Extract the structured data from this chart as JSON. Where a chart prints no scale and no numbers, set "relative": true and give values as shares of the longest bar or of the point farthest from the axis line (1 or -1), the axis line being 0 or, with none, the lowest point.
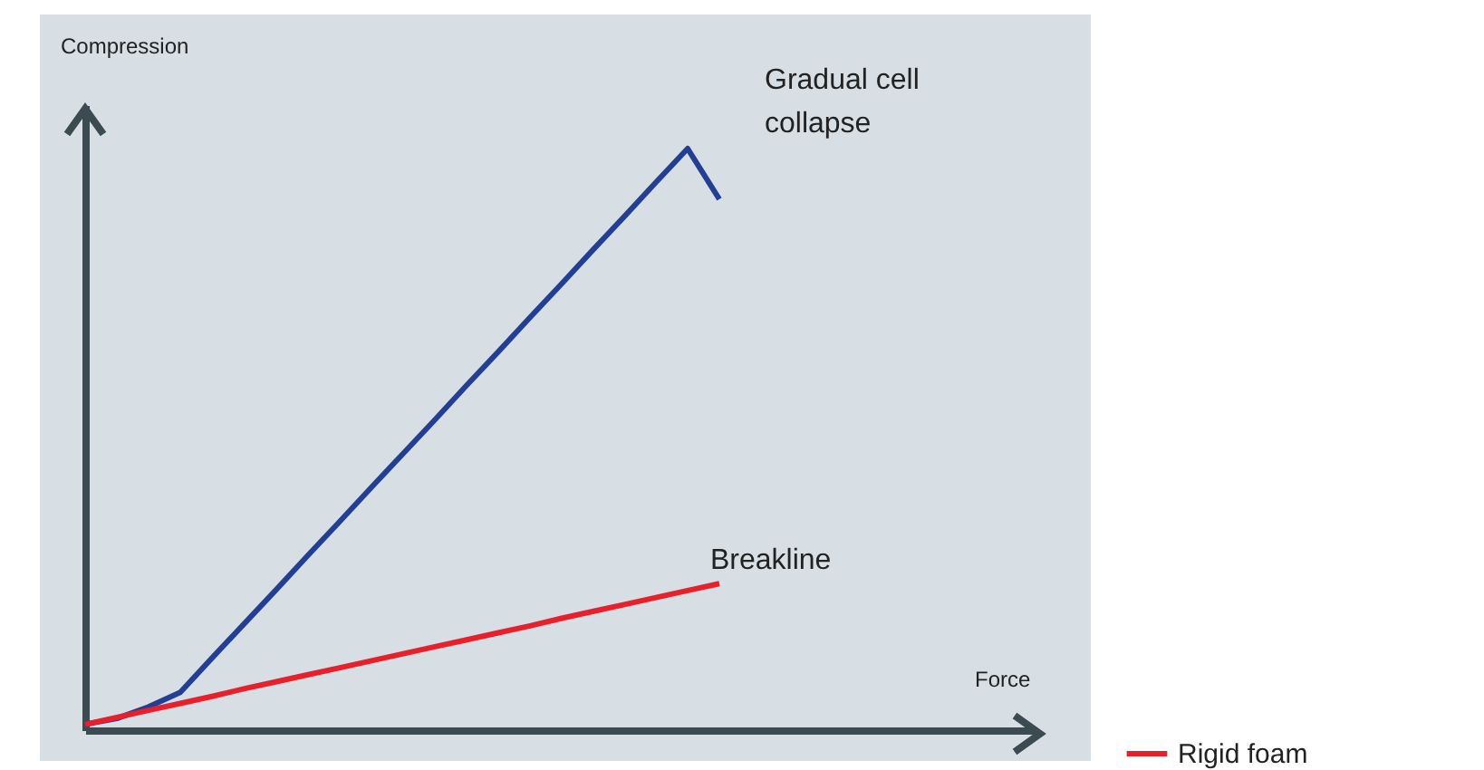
{
  "chart_data": {
    "type": "line",
    "relative": true,
    "ylabel": "Compression",
    "legend": "bottom right",
    "categories": [
      null,
      null,
      null,
      null,
      null,
      null,
      null,
      null,
      null,
      null,
      null,
      null,
      null,
      null,
      null,
      null,
      null,
      null,
      null,
      null,
      null
    ],
    "annotations": [
      "Gradual cell collapse",
      "Breakline",
      "Force"
    ],
    "series": [
      {
        "color": "#233f93",
        "values": [
          0.01,
          0.02,
          0.04,
          0.065,
          0.124,
          0.182,
          0.24,
          0.299,
          0.357,
          0.416,
          0.474,
          0.532,
          0.591,
          0.649,
          0.708,
          0.766,
          0.825,
          0.883,
          0.942,
          1.0,
          0.913
        ]
      },
      {
        "name": "Rigid foam",
        "color": "#e8202a",
        "values": [
          0.01,
          0.022,
          0.034,
          0.046,
          0.058,
          0.071,
          0.083,
          0.095,
          0.107,
          0.119,
          0.131,
          0.143,
          0.155,
          0.167,
          0.179,
          0.192,
          0.204,
          0.216,
          0.228,
          0.24,
          0.252
        ]
      }
    ]
  }
}
